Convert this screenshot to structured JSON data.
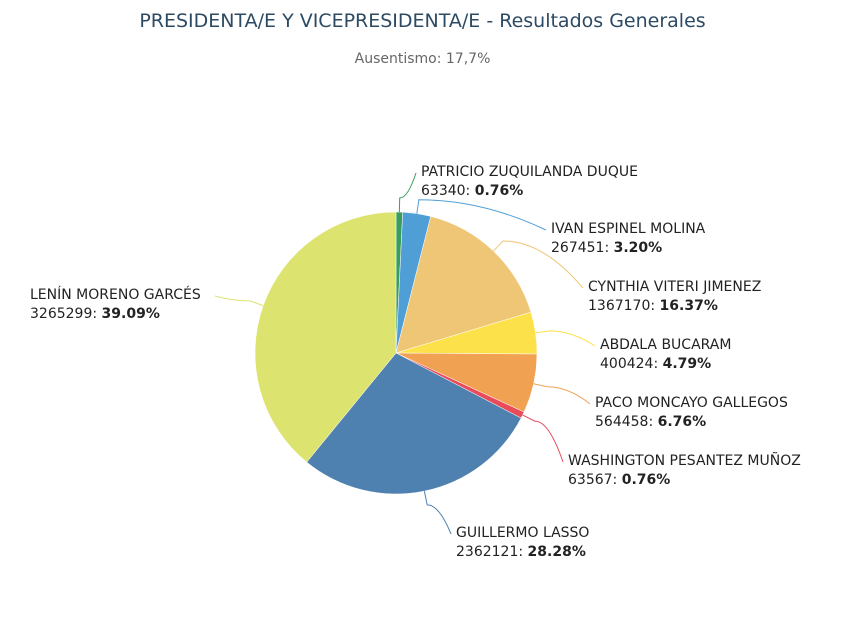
{
  "chart_data": {
    "type": "pie",
    "title": "PRESIDENTA/E Y VICEPRESIDENTA/E - Resultados Generales",
    "subtitle": "Ausentismo: 17,7%",
    "legend": "none (data labels)",
    "slices": [
      {
        "name": "PATRICIO ZUQUILANDA DUQUE",
        "value": 63340,
        "percent": "0.76%",
        "color": "#3a9e5a"
      },
      {
        "name": "IVAN ESPINEL MOLINA",
        "value": 267451,
        "percent": "3.20%",
        "color": "#4f9fd6"
      },
      {
        "name": "CYNTHIA VITERI JIMENEZ",
        "value": 1367170,
        "percent": "16.37%",
        "color": "#efc576"
      },
      {
        "name": "ABDALA BUCARAM",
        "value": 400424,
        "percent": "4.79%",
        "color": "#fde14a"
      },
      {
        "name": "PACO MONCAYO GALLEGOS",
        "value": 564458,
        "percent": "6.76%",
        "color": "#f0a252"
      },
      {
        "name": "WASHINGTON PESANTEZ MUÑOZ",
        "value": 63567,
        "percent": "0.76%",
        "color": "#e84c5a"
      },
      {
        "name": "GUILLERMO LASSO",
        "value": 2362121,
        "percent": "28.28%",
        "color": "#4f81b0"
      },
      {
        "name": "LENÍN MORENO GARCÉS",
        "value": 3265299,
        "percent": "39.09%",
        "color": "#dce46f"
      }
    ]
  }
}
